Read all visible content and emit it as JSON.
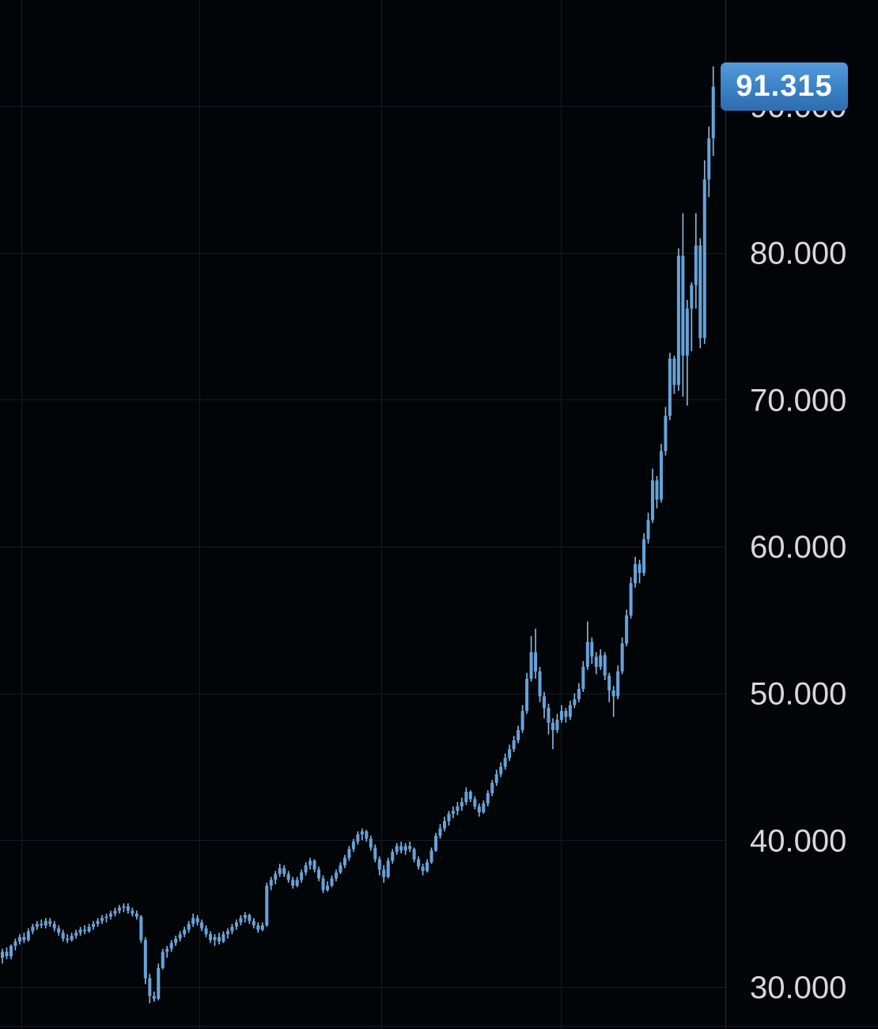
{
  "window": {
    "description": "Dark-themed candlestick price chart with right-hand price scale and floating last-price tag"
  },
  "chart_data": {
    "type": "candlestick",
    "last_price": "91.315",
    "last_price_value": 91.315,
    "price_scale": {
      "labels": [
        "90.000",
        "80.000",
        "70.000",
        "60.000",
        "50.000",
        "40.000",
        "30.000"
      ],
      "values_thousands": [
        90,
        80,
        70,
        60,
        50,
        40,
        30
      ]
    },
    "ylim_thousands": [
      27.1,
      97.2
    ],
    "grid": "on",
    "legend_position": "none",
    "xlabel": "",
    "ylabel": "",
    "units_note": "OHLC values are in thousands, read from chart pixels",
    "layout_hints": {
      "v_gridlines_x": [
        27,
        252,
        482,
        709
      ],
      "price_axis_left": 917,
      "label_text_x": 948
    },
    "colors": {
      "background": "#020508",
      "gridline": "#0f1d29",
      "axis_border": "#232d3b",
      "axis_text": "#d6d8da",
      "candle": "#66a3da",
      "candle_wick": "#8ab8e2",
      "price_tag_top": "#549bdc",
      "price_tag_bottom": "#2e6dad",
      "price_tag_text": "#ffffff"
    },
    "candles_ohlc": [
      [
        32.0,
        32.6,
        31.6,
        32.4
      ],
      [
        32.4,
        32.7,
        31.9,
        32.1
      ],
      [
        32.1,
        32.9,
        31.9,
        32.8
      ],
      [
        32.8,
        33.3,
        32.5,
        33.1
      ],
      [
        33.1,
        33.6,
        32.9,
        33.4
      ],
      [
        33.4,
        33.7,
        33.0,
        33.2
      ],
      [
        33.2,
        34.0,
        33.1,
        33.8
      ],
      [
        33.8,
        34.3,
        33.6,
        34.1
      ],
      [
        34.1,
        34.5,
        33.9,
        34.3
      ],
      [
        34.3,
        34.6,
        34.0,
        34.2
      ],
      [
        34.2,
        34.7,
        34.0,
        34.5
      ],
      [
        34.5,
        34.7,
        34.1,
        34.3
      ],
      [
        34.3,
        34.5,
        33.8,
        34.0
      ],
      [
        34.0,
        34.2,
        33.5,
        33.7
      ],
      [
        33.7,
        33.9,
        33.1,
        33.3
      ],
      [
        33.3,
        33.6,
        33.0,
        33.2
      ],
      [
        33.2,
        33.7,
        33.1,
        33.5
      ],
      [
        33.5,
        33.9,
        33.3,
        33.7
      ],
      [
        33.7,
        34.1,
        33.5,
        33.9
      ],
      [
        33.9,
        34.2,
        33.6,
        33.8
      ],
      [
        33.8,
        34.3,
        33.7,
        34.1
      ],
      [
        34.1,
        34.5,
        33.9,
        34.3
      ],
      [
        34.3,
        34.7,
        34.1,
        34.5
      ],
      [
        34.5,
        34.9,
        34.3,
        34.7
      ],
      [
        34.7,
        35.0,
        34.4,
        34.8
      ],
      [
        34.8,
        35.2,
        34.6,
        35.0
      ],
      [
        35.0,
        35.4,
        34.8,
        35.2
      ],
      [
        35.2,
        35.6,
        35.0,
        35.4
      ],
      [
        35.4,
        35.7,
        35.1,
        35.5
      ],
      [
        35.5,
        35.7,
        35.0,
        35.2
      ],
      [
        35.2,
        35.4,
        34.8,
        35.0
      ],
      [
        35.0,
        35.2,
        34.6,
        34.8
      ],
      [
        34.8,
        34.9,
        33.0,
        33.2
      ],
      [
        33.2,
        33.4,
        30.2,
        30.6
      ],
      [
        30.6,
        30.9,
        28.9,
        29.4
      ],
      [
        29.4,
        29.7,
        29.0,
        29.2
      ],
      [
        29.2,
        31.6,
        29.1,
        31.3
      ],
      [
        31.3,
        32.6,
        31.2,
        32.4
      ],
      [
        32.4,
        32.8,
        32.0,
        32.6
      ],
      [
        32.6,
        33.2,
        32.4,
        33.0
      ],
      [
        33.0,
        33.5,
        32.8,
        33.3
      ],
      [
        33.3,
        33.8,
        33.1,
        33.6
      ],
      [
        33.6,
        34.1,
        33.4,
        33.9
      ],
      [
        33.9,
        34.5,
        33.7,
        34.3
      ],
      [
        34.3,
        35.0,
        34.1,
        34.7
      ],
      [
        34.7,
        34.9,
        34.2,
        34.4
      ],
      [
        34.4,
        34.6,
        33.8,
        34.0
      ],
      [
        34.0,
        34.2,
        33.4,
        33.6
      ],
      [
        33.6,
        33.8,
        33.0,
        33.2
      ],
      [
        33.2,
        33.6,
        32.8,
        33.4
      ],
      [
        33.4,
        33.7,
        32.9,
        33.1
      ],
      [
        33.1,
        33.8,
        33.0,
        33.6
      ],
      [
        33.6,
        34.0,
        33.3,
        33.8
      ],
      [
        33.8,
        34.3,
        33.6,
        34.1
      ],
      [
        34.1,
        34.6,
        33.9,
        34.4
      ],
      [
        34.4,
        34.9,
        34.2,
        34.7
      ],
      [
        34.7,
        35.1,
        34.4,
        34.9
      ],
      [
        34.9,
        35.0,
        34.3,
        34.5
      ],
      [
        34.5,
        34.7,
        34.0,
        34.2
      ],
      [
        34.2,
        34.4,
        33.7,
        33.9
      ],
      [
        33.9,
        34.4,
        33.8,
        34.2
      ],
      [
        34.2,
        37.1,
        34.1,
        36.9
      ],
      [
        36.9,
        37.5,
        36.6,
        37.3
      ],
      [
        37.3,
        37.9,
        37.0,
        37.7
      ],
      [
        37.7,
        38.4,
        37.5,
        38.1
      ],
      [
        38.1,
        38.3,
        37.5,
        37.7
      ],
      [
        37.7,
        37.9,
        37.1,
        37.3
      ],
      [
        37.3,
        37.5,
        36.7,
        36.9
      ],
      [
        36.9,
        37.5,
        36.8,
        37.3
      ],
      [
        37.3,
        38.0,
        37.1,
        37.8
      ],
      [
        37.8,
        38.5,
        37.6,
        38.3
      ],
      [
        38.3,
        38.8,
        38.0,
        38.6
      ],
      [
        38.6,
        38.7,
        37.8,
        38.0
      ],
      [
        38.0,
        38.2,
        37.2,
        37.4
      ],
      [
        37.4,
        37.6,
        36.4,
        36.6
      ],
      [
        36.6,
        37.2,
        36.5,
        36.9
      ],
      [
        36.9,
        37.6,
        36.8,
        37.4
      ],
      [
        37.4,
        38.0,
        37.2,
        37.8
      ],
      [
        37.8,
        38.5,
        37.7,
        38.3
      ],
      [
        38.3,
        39.0,
        38.1,
        38.8
      ],
      [
        38.8,
        39.6,
        38.6,
        39.4
      ],
      [
        39.4,
        40.1,
        39.2,
        39.9
      ],
      [
        39.9,
        40.6,
        39.7,
        40.4
      ],
      [
        40.4,
        40.8,
        40.0,
        40.6
      ],
      [
        40.6,
        40.7,
        39.9,
        40.1
      ],
      [
        40.1,
        40.3,
        39.3,
        39.5
      ],
      [
        39.5,
        39.7,
        38.5,
        38.7
      ],
      [
        38.7,
        38.9,
        37.6,
        38.0
      ],
      [
        38.0,
        38.3,
        37.1,
        37.5
      ],
      [
        37.5,
        38.8,
        37.4,
        38.6
      ],
      [
        38.6,
        39.4,
        38.4,
        39.2
      ],
      [
        39.2,
        39.8,
        39.0,
        39.6
      ],
      [
        39.6,
        39.9,
        39.1,
        39.3
      ],
      [
        39.3,
        39.8,
        39.0,
        39.6
      ],
      [
        39.6,
        39.9,
        39.2,
        39.4
      ],
      [
        39.4,
        39.5,
        38.5,
        38.7
      ],
      [
        38.7,
        38.9,
        38.0,
        38.2
      ],
      [
        38.2,
        38.4,
        37.6,
        37.9
      ],
      [
        37.9,
        38.7,
        37.8,
        38.5
      ],
      [
        38.5,
        39.5,
        38.4,
        39.3
      ],
      [
        39.3,
        40.5,
        39.2,
        40.3
      ],
      [
        40.3,
        41.1,
        40.1,
        40.8
      ],
      [
        40.8,
        41.6,
        40.6,
        41.3
      ],
      [
        41.3,
        42.0,
        41.0,
        41.8
      ],
      [
        41.8,
        42.3,
        41.5,
        42.0
      ],
      [
        42.0,
        42.6,
        41.7,
        42.3
      ],
      [
        42.3,
        42.9,
        42.0,
        42.6
      ],
      [
        42.6,
        43.6,
        42.4,
        43.3
      ],
      [
        43.3,
        43.4,
        42.6,
        42.8
      ],
      [
        42.8,
        43.0,
        42.1,
        42.3
      ],
      [
        42.3,
        42.5,
        41.6,
        41.9
      ],
      [
        41.9,
        42.7,
        41.8,
        42.5
      ],
      [
        42.5,
        43.4,
        42.3,
        43.2
      ],
      [
        43.2,
        44.1,
        43.0,
        43.9
      ],
      [
        43.9,
        44.8,
        43.7,
        44.5
      ],
      [
        44.5,
        45.3,
        44.3,
        45.0
      ],
      [
        45.0,
        45.9,
        44.8,
        45.6
      ],
      [
        45.6,
        46.5,
        45.4,
        46.2
      ],
      [
        46.2,
        47.1,
        46.0,
        46.8
      ],
      [
        46.8,
        47.8,
        46.6,
        47.5
      ],
      [
        47.5,
        49.2,
        47.3,
        48.8
      ],
      [
        48.8,
        51.4,
        48.6,
        51.0
      ],
      [
        51.0,
        53.9,
        50.8,
        52.8
      ],
      [
        52.8,
        54.4,
        51.0,
        51.5
      ],
      [
        51.5,
        51.8,
        49.4,
        49.8
      ],
      [
        49.8,
        50.1,
        48.3,
        49.0
      ],
      [
        49.0,
        49.3,
        47.2,
        48.0
      ],
      [
        48.0,
        48.3,
        46.2,
        47.5
      ],
      [
        47.5,
        48.6,
        47.3,
        48.2
      ],
      [
        48.2,
        49.2,
        48.0,
        48.8
      ],
      [
        48.8,
        49.0,
        48.0,
        48.4
      ],
      [
        48.4,
        49.5,
        48.2,
        49.2
      ],
      [
        49.2,
        50.0,
        49.0,
        49.6
      ],
      [
        49.6,
        50.7,
        49.4,
        50.3
      ],
      [
        50.3,
        52.2,
        50.1,
        51.8
      ],
      [
        51.8,
        54.9,
        51.6,
        53.5
      ],
      [
        53.5,
        53.8,
        52.0,
        52.5
      ],
      [
        52.5,
        52.8,
        51.3,
        51.8
      ],
      [
        51.8,
        53.0,
        51.6,
        52.6
      ],
      [
        52.6,
        52.8,
        50.9,
        51.2
      ],
      [
        51.2,
        51.4,
        49.4,
        50.2
      ],
      [
        50.2,
        50.5,
        48.4,
        49.8
      ],
      [
        49.8,
        51.9,
        49.6,
        51.5
      ],
      [
        51.5,
        53.8,
        51.3,
        53.4
      ],
      [
        53.4,
        55.7,
        53.2,
        55.3
      ],
      [
        55.3,
        57.9,
        55.1,
        57.5
      ],
      [
        57.5,
        59.3,
        57.2,
        58.8
      ],
      [
        58.8,
        59.1,
        57.5,
        58.2
      ],
      [
        58.2,
        60.9,
        58.0,
        60.5
      ],
      [
        60.5,
        62.3,
        60.2,
        61.8
      ],
      [
        61.8,
        65.3,
        61.6,
        64.5
      ],
      [
        64.5,
        64.8,
        62.6,
        63.2
      ],
      [
        63.2,
        67.0,
        63.0,
        66.5
      ],
      [
        66.5,
        69.5,
        66.2,
        68.9
      ],
      [
        68.9,
        73.2,
        68.6,
        72.8
      ],
      [
        72.8,
        73.0,
        70.4,
        71.0
      ],
      [
        71.0,
        80.3,
        70.6,
        79.8
      ],
      [
        79.8,
        82.7,
        70.2,
        73.0
      ],
      [
        73.0,
        76.8,
        69.6,
        76.2
      ],
      [
        76.2,
        78.0,
        73.3,
        77.8
      ],
      [
        77.8,
        82.7,
        76.2,
        80.5
      ],
      [
        80.5,
        81.0,
        73.5,
        74.2
      ],
      [
        74.2,
        86.3,
        73.8,
        85.0
      ],
      [
        85.0,
        88.6,
        83.8,
        87.8
      ],
      [
        87.8,
        92.7,
        86.6,
        91.315
      ]
    ]
  }
}
